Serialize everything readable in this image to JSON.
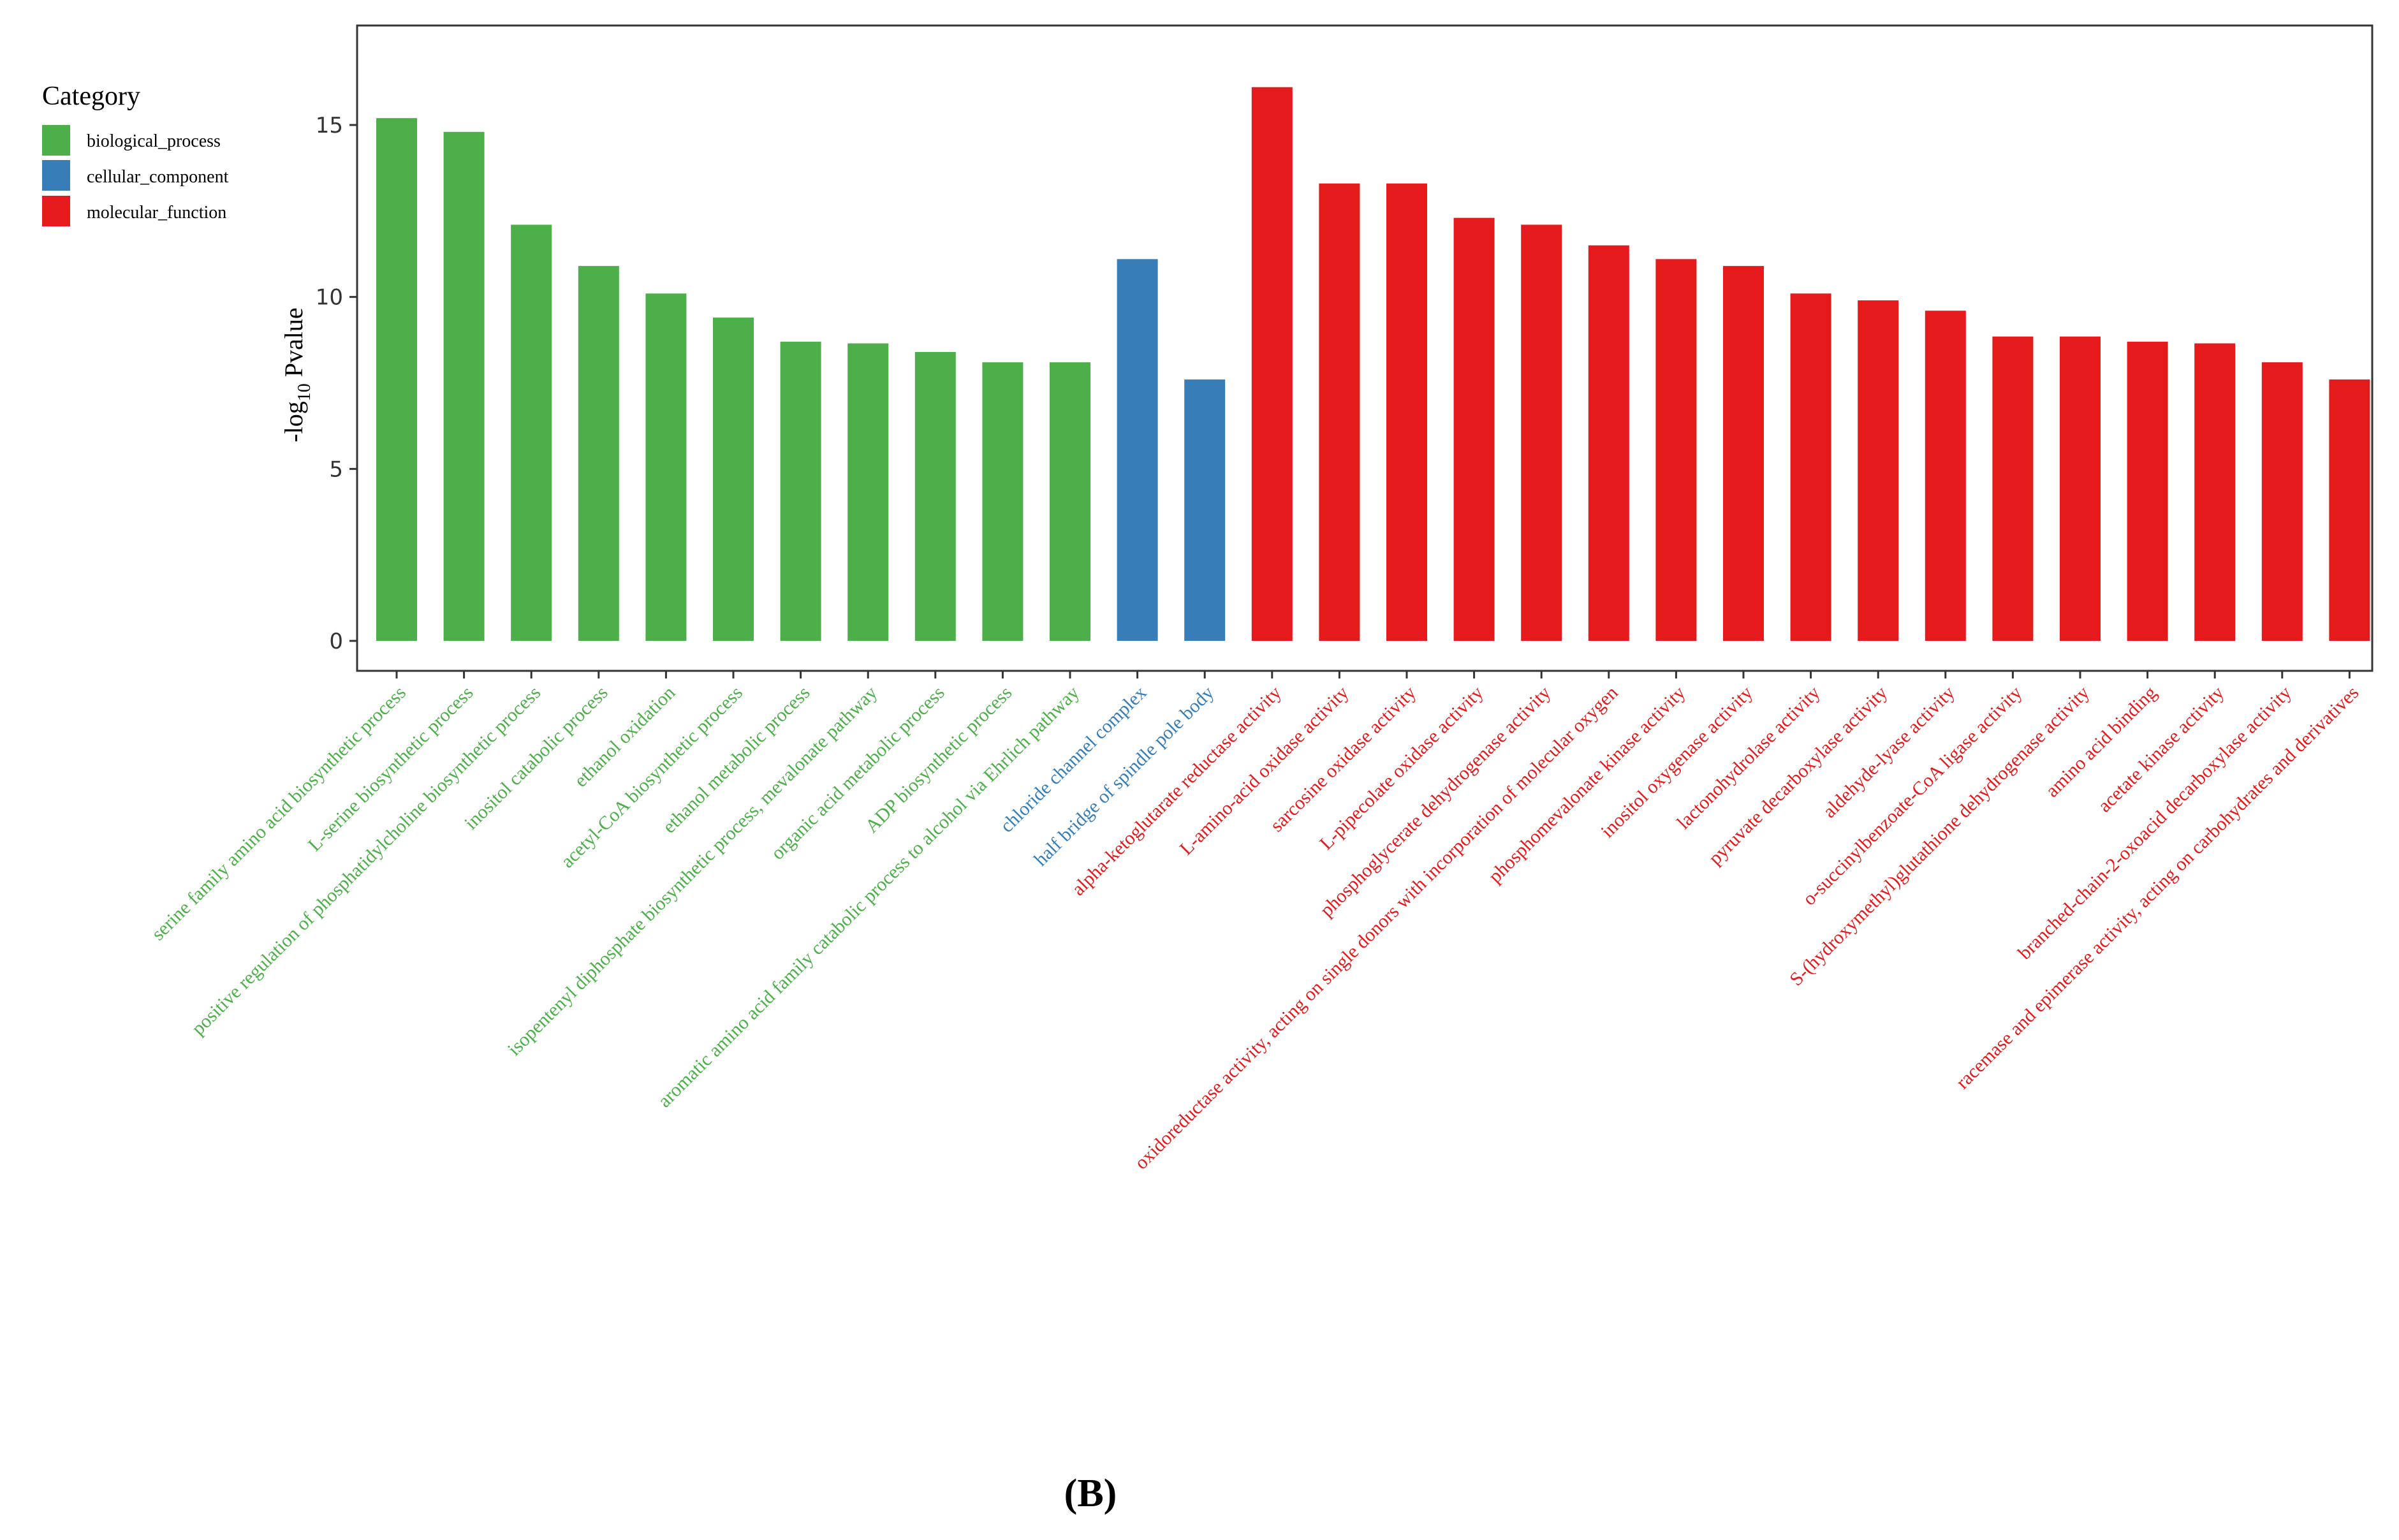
{
  "chart_data": {
    "type": "bar",
    "ylabel": {
      "prefix": "-log",
      "subscript": "10",
      "suffix": " Pvalue"
    },
    "ylim": [
      0,
      17.5
    ],
    "yticks": [
      0,
      5,
      10,
      15
    ],
    "grid": false,
    "legend": {
      "title": "Category",
      "position": "top-left",
      "entries": [
        {
          "name": "biological_process",
          "color": "#4daf4a"
        },
        {
          "name": "cellular_component",
          "color": "#377eb8"
        },
        {
          "name": "molecular_function",
          "color": "#e41a1c"
        }
      ]
    },
    "categories": [
      "serine family amino acid biosynthetic process",
      "L-serine biosynthetic process",
      "positive regulation of phosphatidylcholine biosynthetic process",
      "inositol catabolic process",
      "ethanol oxidation",
      "acetyl-CoA biosynthetic process",
      "ethanol metabolic process",
      "isopentenyl diphosphate biosynthetic process, mevalonate pathway",
      "organic acid metabolic process",
      "ADP biosynthetic process",
      "aromatic amino acid family catabolic process to alcohol via Ehrlich pathway",
      "chloride channel complex",
      "half bridge of spindle pole body",
      "alpha-ketoglutarate reductase activity",
      "L-amino-acid oxidase activity",
      "sarcosine oxidase activity",
      "L-pipecolate oxidase activity",
      "phosphoglycerate dehydrogenase activity",
      "oxidoreductase activity, acting on single donors with incorporation of molecular oxygen",
      "phosphomevalonate kinase activity",
      "inositol oxygenase activity",
      "lactonohydrolase activity",
      "pyruvate decarboxylase activity",
      "aldehyde-lyase activity",
      "o-succinylbenzoate-CoA ligase activity",
      "S-(hydroxymethyl)glutathione dehydrogenase activity",
      "amino acid binding",
      "acetate kinase activity",
      "branched-chain-2-oxoacid decarboxylase activity",
      "racemase and epimerase activity, acting on carbohydrates and derivatives"
    ],
    "category_group": [
      "biological_process",
      "biological_process",
      "biological_process",
      "biological_process",
      "biological_process",
      "biological_process",
      "biological_process",
      "biological_process",
      "biological_process",
      "biological_process",
      "biological_process",
      "cellular_component",
      "cellular_component",
      "molecular_function",
      "molecular_function",
      "molecular_function",
      "molecular_function",
      "molecular_function",
      "molecular_function",
      "molecular_function",
      "molecular_function",
      "molecular_function",
      "molecular_function",
      "molecular_function",
      "molecular_function",
      "molecular_function",
      "molecular_function",
      "molecular_function",
      "molecular_function",
      "molecular_function"
    ],
    "values": [
      15.2,
      14.8,
      12.1,
      10.9,
      10.1,
      9.4,
      8.7,
      8.65,
      8.4,
      8.1,
      8.1,
      11.1,
      7.6,
      16.1,
      13.3,
      13.3,
      12.3,
      12.1,
      11.5,
      11.1,
      10.9,
      10.1,
      9.9,
      9.6,
      8.85,
      8.85,
      8.7,
      8.65,
      8.1,
      7.6
    ]
  },
  "caption": "(B)"
}
